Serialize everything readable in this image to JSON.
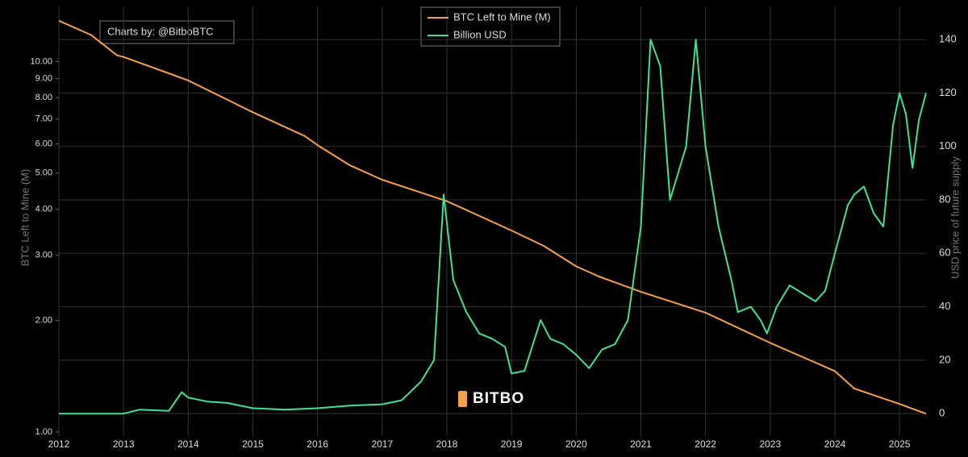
{
  "chart_data": {
    "type": "line",
    "annotation": "Charts by: @BitboBTC",
    "watermark": "BITBO",
    "y_label": "BTC Left to Mine (M)",
    "y2_label": "USD price of future supply",
    "xlim": [
      2012,
      2025.41
    ],
    "xticks": [
      2012,
      2013,
      2014,
      2015,
      2016,
      2017,
      2018,
      2019,
      2020,
      2021,
      2022,
      2023,
      2024,
      2025
    ],
    "ylim": [
      0.975,
      14.1
    ],
    "log_y": true,
    "yticks": [
      {
        "value": 1,
        "label": "1.00"
      },
      {
        "value": 2,
        "label": "2.00"
      },
      {
        "value": 3,
        "label": "3.00"
      },
      {
        "value": 4,
        "label": "4.00"
      },
      {
        "value": 5,
        "label": "5.00"
      },
      {
        "value": 6,
        "label": "6.00"
      },
      {
        "value": 7,
        "label": "7.00"
      },
      {
        "value": 8,
        "label": "8.00"
      },
      {
        "value": 9,
        "label": "9.00"
      },
      {
        "value": 10,
        "label": "10.00"
      }
    ],
    "y2lim": [
      -8.4,
      152.4
    ],
    "y2ticks": [
      0,
      20,
      40,
      60,
      80,
      100,
      120,
      140
    ],
    "grid": true,
    "legend": "top-center",
    "series": [
      {
        "name": "BTC Left to Mine (M)",
        "color": "#f5a04a",
        "x": [
          2012,
          2012.5,
          2012.9,
          2013,
          2013.7,
          2014,
          2015,
          2015.8,
          2016,
          2016.5,
          2017,
          2018,
          2019,
          2019.5,
          2020,
          2020.35,
          2021,
          2022,
          2023,
          2024,
          2024.3,
          2025,
          2025.41
        ],
        "values": [
          12.9,
          11.8,
          10.4,
          10.3,
          9.3,
          8.9,
          7.3,
          6.3,
          5.95,
          5.25,
          4.8,
          4.2,
          3.5,
          3.18,
          2.8,
          2.63,
          2.39,
          2.1,
          1.74,
          1.46,
          1.31,
          1.19,
          1.12
        ]
      },
      {
        "name": "Billion USD",
        "color": "#3fe394",
        "axis": "y2",
        "x": [
          2012,
          2013,
          2013.25,
          2013.7,
          2013.9,
          2014,
          2014.3,
          2014.6,
          2015,
          2015.5,
          2016,
          2016.5,
          2017,
          2017.3,
          2017.6,
          2017.8,
          2017.95,
          2018.1,
          2018.3,
          2018.5,
          2018.7,
          2018.9,
          2019,
          2019.2,
          2019.45,
          2019.6,
          2019.8,
          2020,
          2020.2,
          2020.4,
          2020.6,
          2020.8,
          2021,
          2021.15,
          2021.3,
          2021.45,
          2021.55,
          2021.7,
          2021.85,
          2022,
          2022.2,
          2022.4,
          2022.5,
          2022.7,
          2022.85,
          2022.95,
          2023.1,
          2023.3,
          2023.5,
          2023.7,
          2023.85,
          2024,
          2024.2,
          2024.3,
          2024.45,
          2024.6,
          2024.75,
          2024.9,
          2025,
          2025.1,
          2025.2,
          2025.3,
          2025.41
        ],
        "values": [
          0,
          0,
          1.5,
          1,
          8,
          6,
          4.5,
          4,
          2,
          1.5,
          2,
          3,
          3.5,
          5,
          12,
          20,
          82,
          50,
          38,
          30,
          28,
          25,
          15,
          16,
          35,
          28,
          26,
          22,
          17,
          24,
          26,
          35,
          70,
          140,
          130,
          80,
          88,
          100,
          140,
          100,
          70,
          50,
          38,
          40,
          35,
          30,
          40,
          48,
          45,
          42,
          46,
          60,
          78,
          82,
          85,
          75,
          70,
          108,
          120,
          112,
          92,
          110,
          120
        ]
      }
    ]
  }
}
